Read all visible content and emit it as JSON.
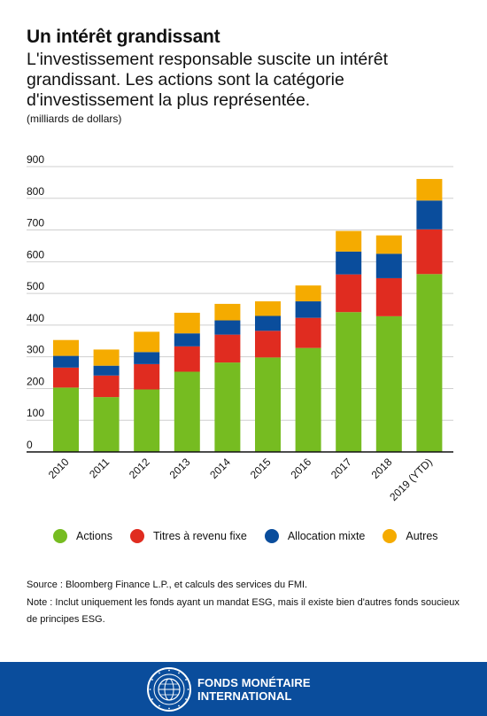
{
  "header": {
    "title": "Un intérêt grandissant",
    "subtitle": "L'investissement responsable suscite un intérêt grandissant. Les actions sont la catégorie d'investissement la plus représentée.",
    "unit": "(milliards de dollars)"
  },
  "chart_data": {
    "type": "bar",
    "stacked": true,
    "categories": [
      "2010",
      "2011",
      "2012",
      "2013",
      "2014",
      "2015",
      "2016",
      "2017",
      "2018",
      "2019 (YTD)"
    ],
    "series": [
      {
        "name": "Actions",
        "color": "#76bc21",
        "values": [
          203,
          173,
          197,
          253,
          282,
          298,
          328,
          441,
          428,
          561
        ]
      },
      {
        "name": "Titres à revenu fixe",
        "color": "#e02c20",
        "values": [
          63,
          68,
          80,
          80,
          88,
          84,
          95,
          119,
          120,
          141
        ]
      },
      {
        "name": "Allocation mixte",
        "color": "#0a4d9c",
        "values": [
          37,
          31,
          38,
          41,
          45,
          47,
          52,
          72,
          77,
          91
        ]
      },
      {
        "name": "Autres",
        "color": "#f5ab00",
        "values": [
          50,
          51,
          64,
          65,
          52,
          46,
          50,
          65,
          58,
          68
        ]
      }
    ],
    "ylim": [
      0,
      900
    ],
    "yticks": [
      0,
      100,
      200,
      300,
      400,
      500,
      600,
      700,
      800,
      900
    ],
    "grid": true,
    "legend_position": "bottom"
  },
  "notes": {
    "source": "Source : Bloomberg Finance L.P., et calculs des services du FMI.",
    "note": "Note : Inclut uniquement les fonds ayant un mandat ESG, mais il existe bien d'autres fonds soucieux de principes ESG."
  },
  "footer": {
    "org_line1": "FONDS MONÉTAIRE",
    "org_line2": "INTERNATIONAL",
    "background": "#0a4d9c",
    "seal_icon": "imf-seal-icon"
  }
}
